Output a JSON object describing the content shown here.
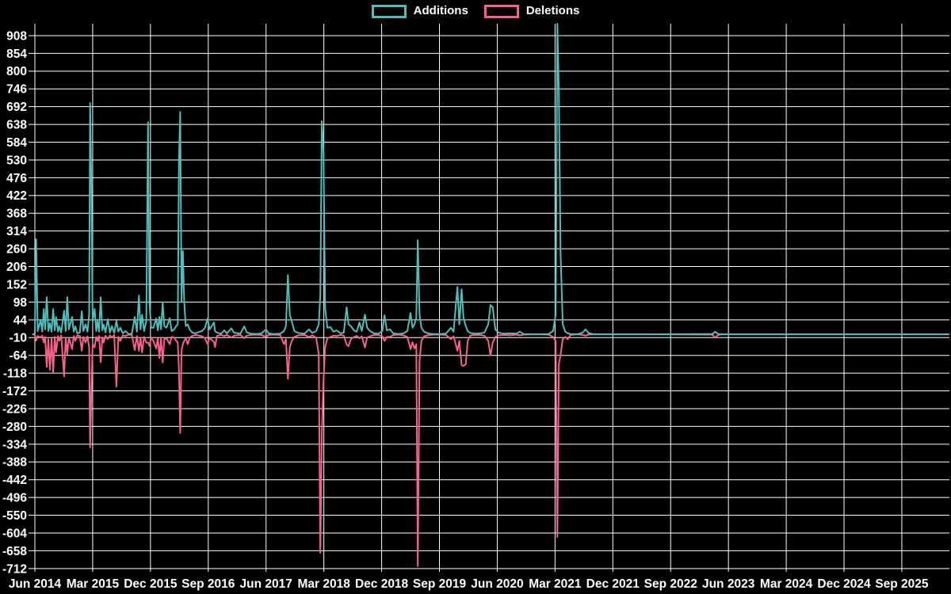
{
  "legend": {
    "additions_label": "Additions",
    "deletions_label": "Deletions"
  },
  "colors": {
    "background": "#000000",
    "grid": "#ffffff",
    "text": "#ffffff",
    "additions": "#4fbdba",
    "deletions": "#f8618a"
  },
  "chart_data": {
    "type": "line",
    "title": "",
    "xlabel": "",
    "ylabel": "",
    "legend_position": "top-center",
    "grid": true,
    "x_unit": "months since Jun 2014 (weekly git additions/deletions series)",
    "x_tick_interval_months": 9,
    "x_tick_labels": [
      "Jun 2014",
      "Mar 2015",
      "Dec 2015",
      "Sep 2016",
      "Jun 2017",
      "Mar 2018",
      "Dec 2018",
      "Sep 2019",
      "Jun 2020",
      "Mar 2021",
      "Dec 2021",
      "Sep 2022",
      "Jun 2023",
      "Mar 2024",
      "Dec 2024",
      "Sep 2025"
    ],
    "y_ticks": [
      908,
      854,
      800,
      746,
      692,
      638,
      584,
      530,
      476,
      422,
      368,
      314,
      260,
      206,
      152,
      98,
      44,
      -10,
      -64,
      -118,
      -172,
      -226,
      -280,
      -334,
      -388,
      -442,
      -496,
      -550,
      -604,
      -658,
      -712
    ],
    "ylim": [
      -722,
      944
    ],
    "series_names": [
      "Additions",
      "Deletions"
    ],
    "points_format": "[month_offset, additions_value, deletions_value]",
    "points": [
      [
        -0.3,
        0,
        0
      ],
      [
        0,
        2,
        -2
      ],
      [
        0.2,
        289,
        -19
      ],
      [
        0.45,
        10,
        -5
      ],
      [
        0.9,
        44,
        -10
      ],
      [
        1.15,
        8,
        -4
      ],
      [
        1.4,
        77,
        -25
      ],
      [
        1.6,
        15,
        -8
      ],
      [
        1.85,
        113,
        -99
      ],
      [
        2.1,
        10,
        -15
      ],
      [
        2.35,
        34,
        -108
      ],
      [
        2.6,
        8,
        -10
      ],
      [
        2.85,
        77,
        -116
      ],
      [
        3.1,
        12,
        -8
      ],
      [
        3.3,
        53,
        -55
      ],
      [
        3.6,
        8,
        -5
      ],
      [
        3.8,
        24,
        -20
      ],
      [
        4.1,
        5,
        -3
      ],
      [
        4.55,
        72,
        -128
      ],
      [
        4.8,
        10,
        -10
      ],
      [
        5.05,
        113,
        -60
      ],
      [
        5.3,
        15,
        -10
      ],
      [
        5.8,
        53,
        -45
      ],
      [
        6.05,
        8,
        -5
      ],
      [
        6.3,
        24,
        -20
      ],
      [
        6.6,
        3,
        -3
      ],
      [
        7,
        5,
        -5
      ],
      [
        7.3,
        70,
        -50
      ],
      [
        7.55,
        10,
        -8
      ],
      [
        7.9,
        30,
        -25
      ],
      [
        8.2,
        8,
        -6
      ],
      [
        8.45,
        60,
        -40
      ],
      [
        8.6,
        703,
        -344
      ],
      [
        8.8,
        445,
        -171
      ],
      [
        9,
        40,
        -30
      ],
      [
        9.3,
        77,
        -40
      ],
      [
        9.55,
        10,
        -8
      ],
      [
        9.75,
        40,
        -20
      ],
      [
        10,
        8,
        -5
      ],
      [
        10.25,
        113,
        -85
      ],
      [
        10.5,
        12,
        -10
      ],
      [
        10.7,
        30,
        -25
      ],
      [
        11,
        6,
        -4
      ],
      [
        11.35,
        46,
        -15
      ],
      [
        11.7,
        5,
        -3
      ],
      [
        12,
        25,
        -10
      ],
      [
        12.35,
        4,
        -2
      ],
      [
        12.7,
        41,
        -159
      ],
      [
        13,
        8,
        -8
      ],
      [
        13.3,
        20,
        -20
      ],
      [
        13.7,
        3,
        -3
      ],
      [
        14.1,
        10,
        -5
      ],
      [
        14.6,
        1,
        -1
      ],
      [
        15.1,
        2,
        -2
      ],
      [
        15.55,
        53,
        -48
      ],
      [
        15.9,
        8,
        -5
      ],
      [
        16.2,
        118,
        -50
      ],
      [
        16.45,
        15,
        -10
      ],
      [
        16.7,
        60,
        -55
      ],
      [
        17,
        10,
        -8
      ],
      [
        17.35,
        40,
        -25
      ],
      [
        17.62,
        645,
        -25
      ],
      [
        17.85,
        96,
        -35
      ],
      [
        18.1,
        20,
        -10
      ],
      [
        18.45,
        20,
        -20
      ],
      [
        18.9,
        48,
        -43
      ],
      [
        19.15,
        12,
        -10
      ],
      [
        19.4,
        53,
        -72
      ],
      [
        19.65,
        15,
        -10
      ],
      [
        19.9,
        97,
        -86
      ],
      [
        20.15,
        25,
        -15
      ],
      [
        20.5,
        20,
        -12
      ],
      [
        21,
        49,
        -30
      ],
      [
        21.3,
        10,
        -8
      ],
      [
        21.7,
        15,
        -10
      ],
      [
        22,
        25,
        -20
      ],
      [
        22.25,
        30,
        -25
      ],
      [
        22.43,
        522,
        -108
      ],
      [
        22.63,
        676,
        -300
      ],
      [
        22.84,
        100,
        -48
      ],
      [
        23.05,
        253,
        -30
      ],
      [
        23.25,
        101,
        -20
      ],
      [
        23.5,
        25,
        -12
      ],
      [
        23.8,
        30,
        -30
      ],
      [
        24.1,
        15,
        -10
      ],
      [
        24.5,
        5,
        -5
      ],
      [
        25,
        3,
        -2
      ],
      [
        25.4,
        6,
        -3
      ],
      [
        26,
        10,
        -6
      ],
      [
        26.5,
        20,
        -12
      ],
      [
        26.9,
        48,
        -30
      ],
      [
        27.2,
        15,
        -10
      ],
      [
        27.9,
        36,
        -24
      ],
      [
        28.05,
        10,
        -39
      ],
      [
        28.35,
        5,
        -5
      ],
      [
        29,
        2,
        -2
      ],
      [
        29.5,
        12,
        -5
      ],
      [
        29.9,
        3,
        -2
      ],
      [
        30.6,
        18,
        -10
      ],
      [
        31,
        5,
        -4
      ],
      [
        32,
        2,
        -2
      ],
      [
        32.6,
        24,
        -12
      ],
      [
        33,
        6,
        -4
      ],
      [
        33.6,
        2,
        -2
      ],
      [
        34.5,
        1,
        -1
      ],
      [
        35.3,
        3,
        -2
      ],
      [
        36,
        15,
        -8
      ],
      [
        36.4,
        3,
        -2
      ],
      [
        37.2,
        1,
        -1
      ],
      [
        38.2,
        2,
        -2
      ],
      [
        38.8,
        10,
        -30
      ],
      [
        39.1,
        25,
        -15
      ],
      [
        39.4,
        180,
        -135
      ],
      [
        39.7,
        60,
        -40
      ],
      [
        40,
        40,
        -20
      ],
      [
        40.4,
        10,
        -8
      ],
      [
        41,
        4,
        -3
      ],
      [
        42,
        2,
        -2
      ],
      [
        42.7,
        15,
        -8
      ],
      [
        43.2,
        4,
        -3
      ],
      [
        43.8,
        10,
        -10
      ],
      [
        44.2,
        30,
        -60
      ],
      [
        44.45,
        120,
        -664
      ],
      [
        44.69,
        648,
        -300
      ],
      [
        44.94,
        554,
        -140
      ],
      [
        45.2,
        80,
        -40
      ],
      [
        45.55,
        20,
        -12
      ],
      [
        46,
        22,
        -8
      ],
      [
        46.5,
        8,
        -4
      ],
      [
        47,
        12,
        -5
      ],
      [
        47.6,
        3,
        -2
      ],
      [
        48.1,
        5,
        -4
      ],
      [
        48.55,
        82,
        -31
      ],
      [
        48.85,
        30,
        -36
      ],
      [
        49.2,
        25,
        -15
      ],
      [
        49.7,
        12,
        -8
      ],
      [
        50.1,
        8,
        -5
      ],
      [
        50.55,
        36,
        -12
      ],
      [
        50.9,
        10,
        -6
      ],
      [
        51.4,
        60,
        -40
      ],
      [
        51.75,
        20,
        -10
      ],
      [
        52.2,
        10,
        -6
      ],
      [
        52.8,
        3,
        -2
      ],
      [
        53.5,
        2,
        -2
      ],
      [
        54.1,
        10,
        -6
      ],
      [
        54.45,
        58,
        -20
      ],
      [
        54.8,
        12,
        -8
      ],
      [
        55.3,
        15,
        -8
      ],
      [
        55.8,
        3,
        -2
      ],
      [
        56.6,
        1,
        -1
      ],
      [
        57.4,
        3,
        -3
      ],
      [
        58,
        10,
        -8
      ],
      [
        58.5,
        65,
        -45
      ],
      [
        58.8,
        20,
        -24
      ],
      [
        59.1,
        30,
        -43
      ],
      [
        59.4,
        50,
        -30
      ],
      [
        59.63,
        286,
        -705
      ],
      [
        59.9,
        60,
        -80
      ],
      [
        60.2,
        20,
        -20
      ],
      [
        60.6,
        8,
        -6
      ],
      [
        61.2,
        3,
        -3
      ],
      [
        62,
        1,
        -1
      ],
      [
        63,
        1,
        -1
      ],
      [
        64,
        2,
        -2
      ],
      [
        64.8,
        20,
        -15
      ],
      [
        65.2,
        8,
        -6
      ],
      [
        65.8,
        144,
        -50
      ],
      [
        66.1,
        30,
        -20
      ],
      [
        66.45,
        137,
        -94
      ],
      [
        66.75,
        50,
        -96
      ],
      [
        67.1,
        25,
        -91
      ],
      [
        67.4,
        10,
        -20
      ],
      [
        67.8,
        4,
        -4
      ],
      [
        68.5,
        2,
        -2
      ],
      [
        69.3,
        3,
        -2
      ],
      [
        70,
        5,
        -4
      ],
      [
        70.6,
        30,
        -20
      ],
      [
        70.95,
        89,
        -64
      ],
      [
        71.3,
        82,
        -25
      ],
      [
        71.7,
        15,
        -8
      ],
      [
        72.2,
        5,
        -3
      ],
      [
        73,
        2,
        -2
      ],
      [
        74,
        3,
        -3
      ],
      [
        75,
        2,
        -1
      ],
      [
        75.5,
        8,
        -3
      ],
      [
        76.1,
        1,
        -1
      ],
      [
        78,
        0,
        0
      ],
      [
        80,
        1,
        -1
      ],
      [
        80.7,
        10,
        -8
      ],
      [
        81.1,
        60,
        -20
      ],
      [
        81.36,
        944,
        -616
      ],
      [
        81.6,
        739,
        -90
      ],
      [
        81.85,
        250,
        -63
      ],
      [
        82.2,
        30,
        -15
      ],
      [
        82.6,
        8,
        -8
      ],
      [
        83,
        3,
        -15
      ],
      [
        83.4,
        1,
        -2
      ],
      [
        84.5,
        0,
        0
      ],
      [
        85.3,
        5,
        -2
      ],
      [
        85.75,
        15,
        -4
      ],
      [
        86.2,
        4,
        -1
      ],
      [
        87,
        0,
        0
      ],
      [
        96,
        0,
        0
      ],
      [
        105.5,
        1,
        -1
      ],
      [
        105.95,
        8,
        -10
      ],
      [
        106.4,
        1,
        -2
      ],
      [
        107,
        0,
        0
      ],
      [
        142.3,
        0,
        0
      ]
    ]
  }
}
